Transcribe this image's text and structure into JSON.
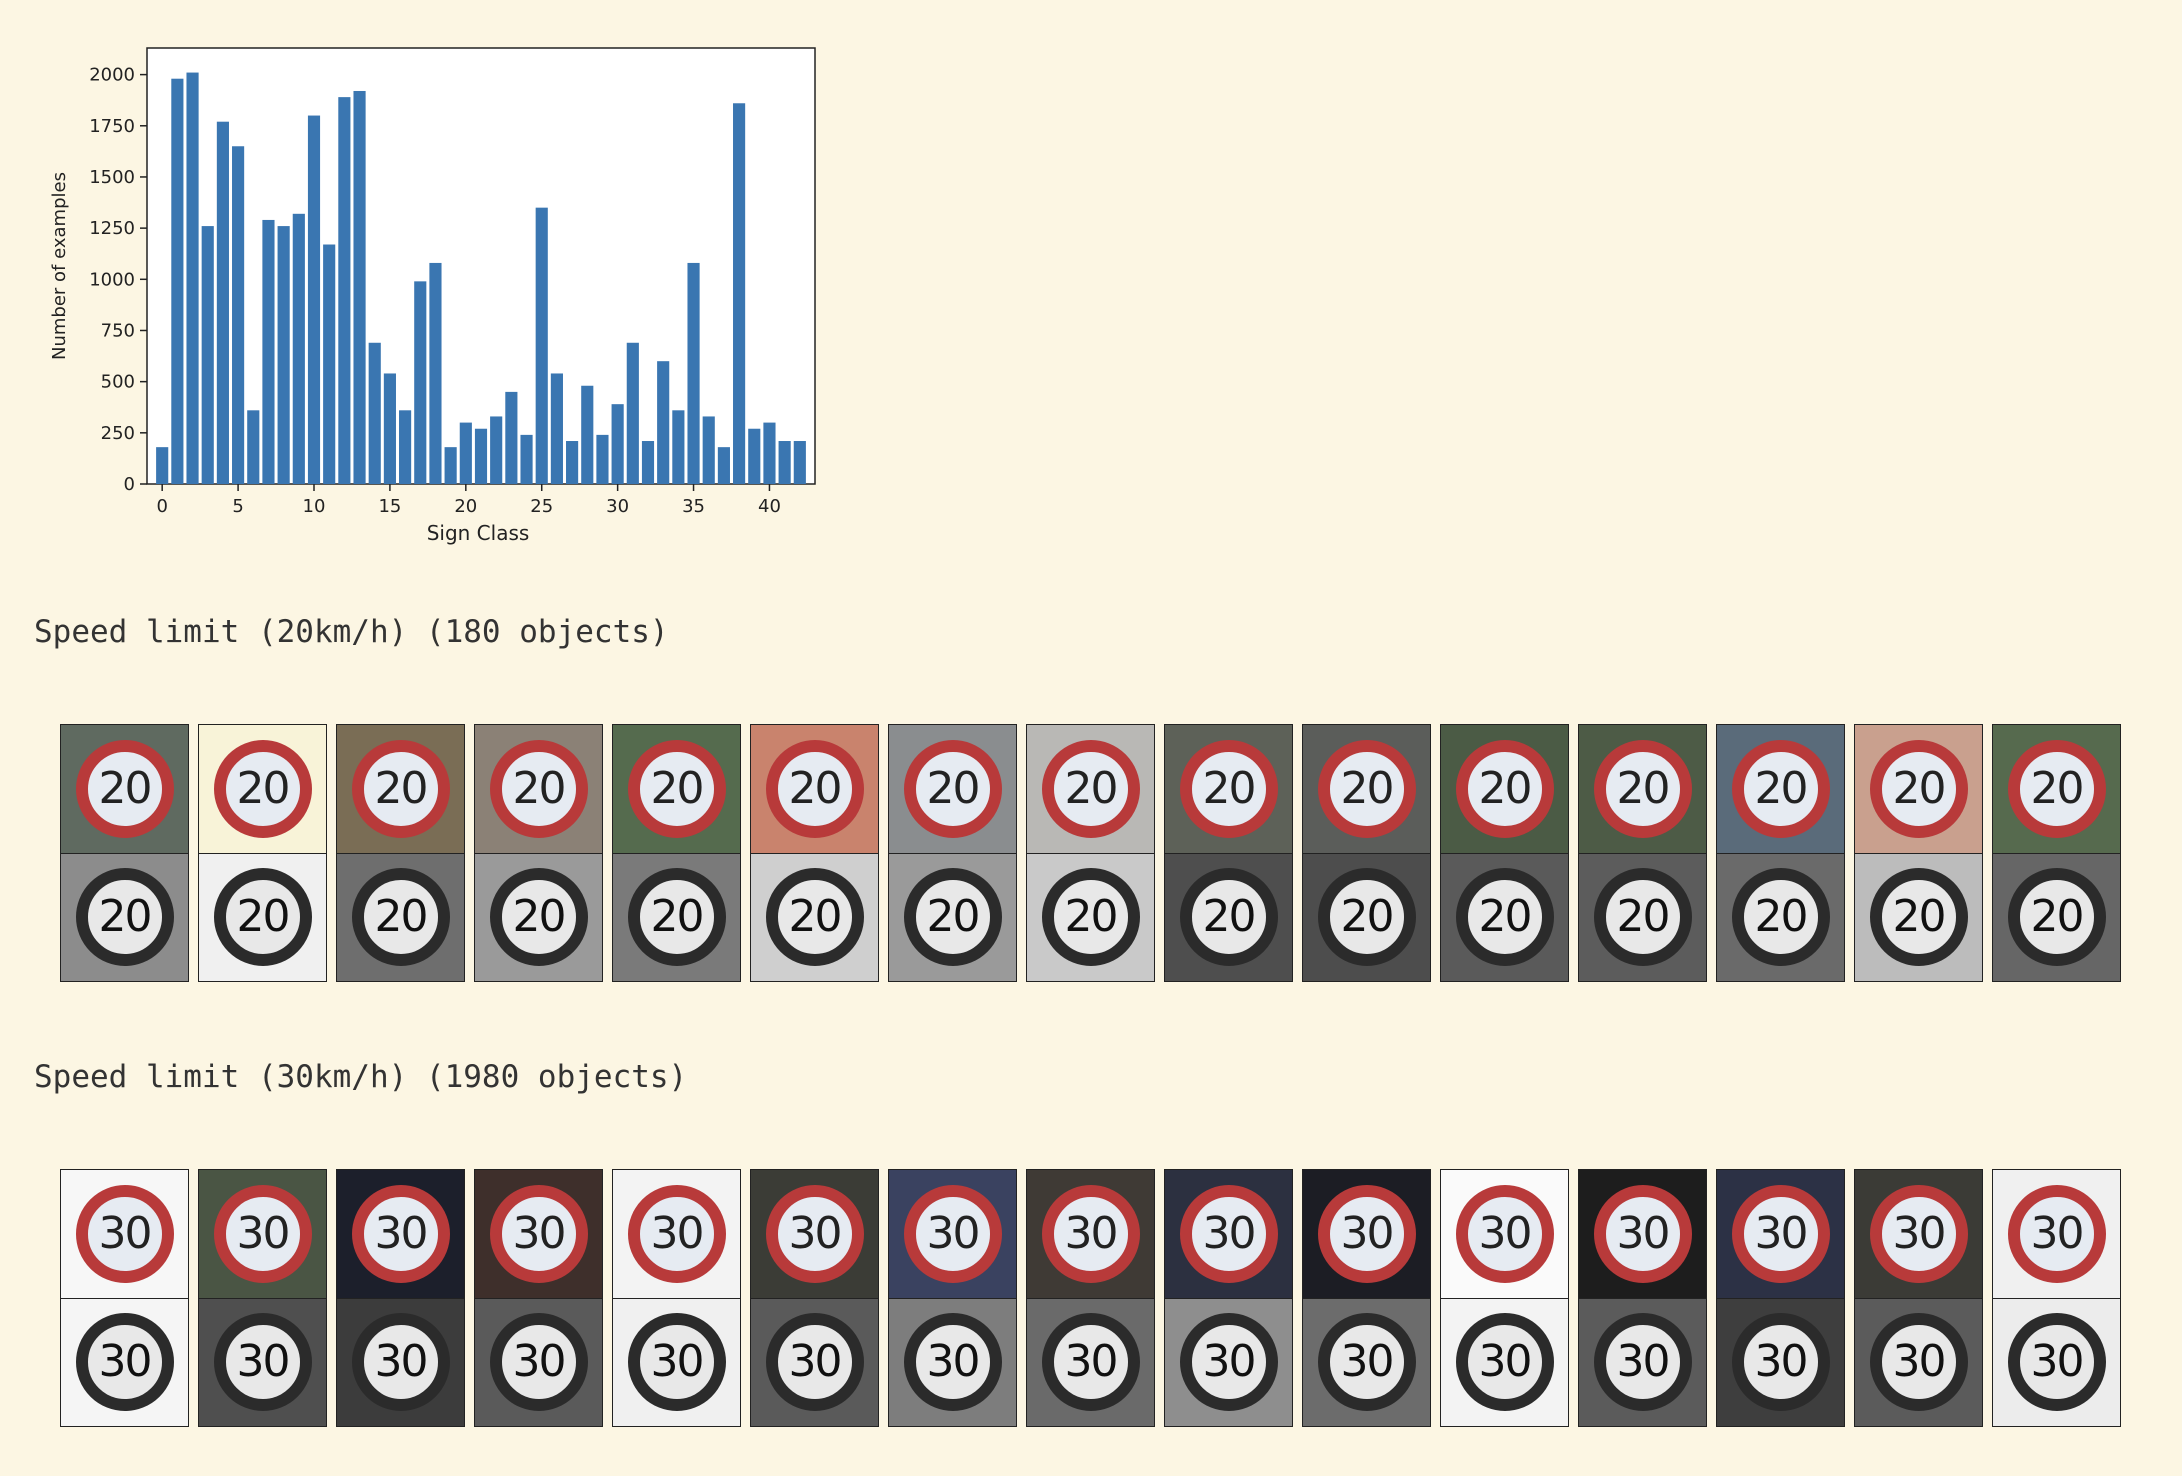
{
  "chart_data": {
    "type": "bar",
    "xlabel": "Sign Class",
    "ylabel": "Number of examples",
    "xlim": [
      -1,
      43
    ],
    "ylim": [
      0,
      2130
    ],
    "grid": false,
    "bar_color": "#3a76b1",
    "x_ticks": [
      0,
      5,
      10,
      15,
      20,
      25,
      30,
      35,
      40
    ],
    "y_ticks": [
      0,
      250,
      500,
      750,
      1000,
      1250,
      1500,
      1750,
      2000
    ],
    "categories": [
      0,
      1,
      2,
      3,
      4,
      5,
      6,
      7,
      8,
      9,
      10,
      11,
      12,
      13,
      14,
      15,
      16,
      17,
      18,
      19,
      20,
      21,
      22,
      23,
      24,
      25,
      26,
      27,
      28,
      29,
      30,
      31,
      32,
      33,
      34,
      35,
      36,
      37,
      38,
      39,
      40,
      41,
      42
    ],
    "values": [
      180,
      1980,
      2010,
      1260,
      1770,
      1650,
      360,
      1290,
      1260,
      1320,
      1800,
      1170,
      1890,
      1920,
      690,
      540,
      360,
      990,
      1080,
      180,
      300,
      270,
      330,
      450,
      240,
      1350,
      540,
      210,
      480,
      240,
      390,
      690,
      210,
      600,
      360,
      1080,
      330,
      180,
      1860,
      270,
      300,
      210,
      210
    ]
  },
  "sections": [
    {
      "caption": "Speed limit (20km/h) (180 objects)",
      "sign_label": "20",
      "thumbs": [
        {
          "color_bg": "#5f6a60",
          "gray_bg": "#8c8c8c"
        },
        {
          "color_bg": "#f8f3d8",
          "gray_bg": "#f0f0f0"
        },
        {
          "color_bg": "#7a6d55",
          "gray_bg": "#6e6e6e"
        },
        {
          "color_bg": "#8b8176",
          "gray_bg": "#9a9a9a"
        },
        {
          "color_bg": "#556b4e",
          "gray_bg": "#7a7a7a"
        },
        {
          "color_bg": "#c9836d",
          "gray_bg": "#cfcfcf"
        },
        {
          "color_bg": "#8a8d8f",
          "gray_bg": "#9a9a9a"
        },
        {
          "color_bg": "#b9b8b5",
          "gray_bg": "#c9c9c9"
        },
        {
          "color_bg": "#5d6158",
          "gray_bg": "#4e4e4e"
        },
        {
          "color_bg": "#5b5d5a",
          "gray_bg": "#4d4d4d"
        },
        {
          "color_bg": "#4b5b45",
          "gray_bg": "#5a5a5a"
        },
        {
          "color_bg": "#4d5b46",
          "gray_bg": "#5c5c5c"
        },
        {
          "color_bg": "#5a6b7a",
          "gray_bg": "#6a6a6a"
        },
        {
          "color_bg": "#c9a08e",
          "gray_bg": "#bcbcbc"
        },
        {
          "color_bg": "#566a4e",
          "gray_bg": "#666666"
        }
      ]
    },
    {
      "caption": "Speed limit (30km/h) (1980 objects)",
      "sign_label": "30",
      "thumbs": [
        {
          "color_bg": "#f7f7f7",
          "gray_bg": "#f5f5f5"
        },
        {
          "color_bg": "#4a5544",
          "gray_bg": "#4f4f4f"
        },
        {
          "color_bg": "#1c1f2b",
          "gray_bg": "#3c3c3c"
        },
        {
          "color_bg": "#3e2f2b",
          "gray_bg": "#5a5a5a"
        },
        {
          "color_bg": "#f3f3f3",
          "gray_bg": "#f0f0f0"
        },
        {
          "color_bg": "#3b3c36",
          "gray_bg": "#5a5a5a"
        },
        {
          "color_bg": "#3a4260",
          "gray_bg": "#7d7d7d"
        },
        {
          "color_bg": "#3f3a35",
          "gray_bg": "#6a6a6a"
        },
        {
          "color_bg": "#2c3040",
          "gray_bg": "#8e8e8e"
        },
        {
          "color_bg": "#1c1d24",
          "gray_bg": "#6c6c6c"
        },
        {
          "color_bg": "#fafafa",
          "gray_bg": "#f3f3f3"
        },
        {
          "color_bg": "#1d1d1d",
          "gray_bg": "#5b5b5b"
        },
        {
          "color_bg": "#2c3145",
          "gray_bg": "#3e3e3e"
        },
        {
          "color_bg": "#3b3b36",
          "gray_bg": "#5b5b5b"
        },
        {
          "color_bg": "#f0f0f0",
          "gray_bg": "#ececec"
        }
      ]
    }
  ]
}
